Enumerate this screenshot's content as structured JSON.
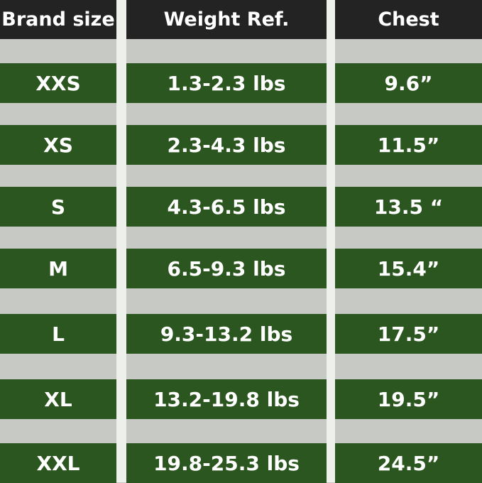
{
  "headers": [
    "Brand size",
    "Weight Ref.",
    "Chest"
  ],
  "rows": [
    {
      "size": "XXS",
      "weight": "1.3-2.3 lbs",
      "chest": "9.6”"
    },
    {
      "size": "XS",
      "weight": "2.3-4.3 lbs",
      "chest": "11.5”"
    },
    {
      "size": "S",
      "weight": "4.3-6.5 lbs",
      "chest": "13.5 “"
    },
    {
      "size": "M",
      "weight": "6.5-9.3 lbs",
      "chest": "15.4”"
    },
    {
      "size": "L",
      "weight": "9.3-13.2 lbs",
      "chest": "17.5”"
    },
    {
      "size": "XL",
      "weight": "13.2-19.8 lbs",
      "chest": "19.5”"
    },
    {
      "size": "XXL",
      "weight": "19.8-25.3 lbs",
      "chest": "24.5”"
    }
  ],
  "colors": {
    "header": "#242324",
    "row": "#2b561f",
    "stripe": "#c7c9c5",
    "divider": "#eef0ec"
  }
}
